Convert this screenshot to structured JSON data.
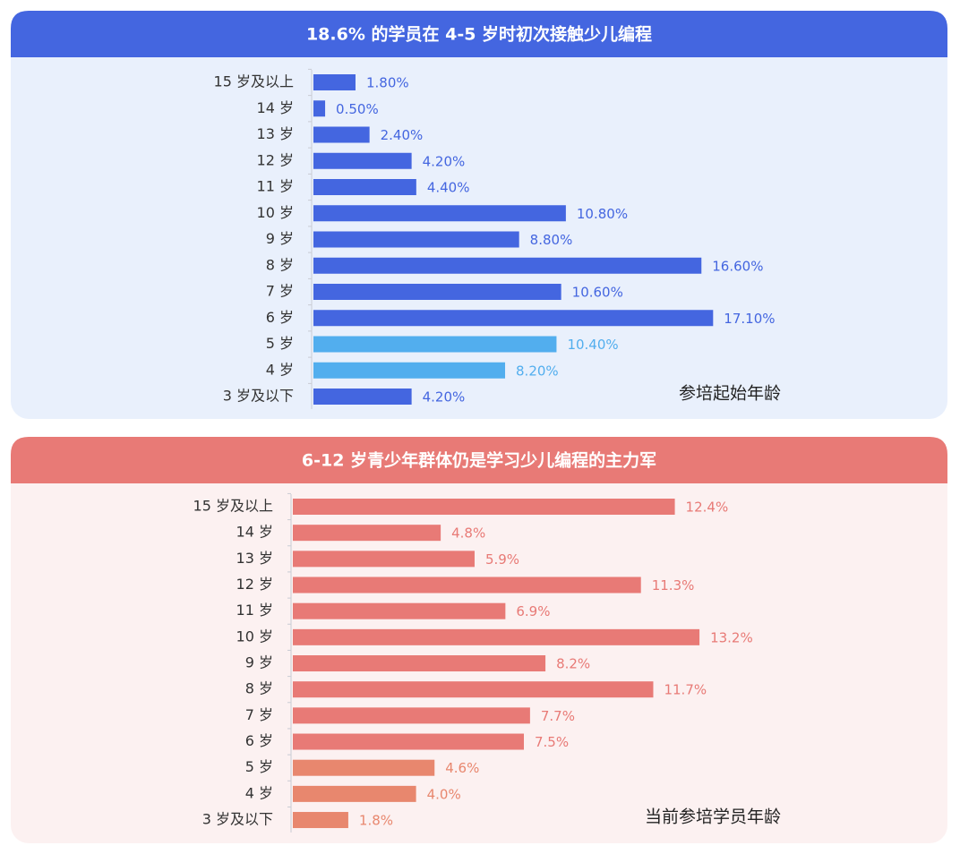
{
  "chart_data": [
    {
      "type": "bar",
      "orientation": "horizontal",
      "title": "18.6% 的学员在 4-5 岁时初次接触少儿编程",
      "annotation": "参培起始年龄",
      "categories": [
        "15 岁及以上",
        "14 岁",
        "13 岁",
        "12 岁",
        "11 岁",
        "10 岁",
        "9 岁",
        "8 岁",
        "7 岁",
        "6 岁",
        "5 岁",
        "4 岁",
        "3 岁及以下"
      ],
      "values": [
        1.8,
        0.5,
        2.4,
        4.2,
        4.4,
        10.8,
        8.8,
        16.6,
        10.6,
        17.1,
        10.4,
        8.2,
        4.2
      ],
      "value_labels": [
        "1.80%",
        "0.50%",
        "2.40%",
        "4.20%",
        "4.40%",
        "10.80%",
        "8.80%",
        "16.60%",
        "10.60%",
        "17.10%",
        "10.40%",
        "8.20%",
        "4.20%"
      ],
      "colors": [
        "#4466e0",
        "#4466e0",
        "#4466e0",
        "#4466e0",
        "#4466e0",
        "#4466e0",
        "#4466e0",
        "#4466e0",
        "#4466e0",
        "#4466e0",
        "#52aeee",
        "#52aeee",
        "#4466e0"
      ],
      "header_color": "#4466e0",
      "panel_color": "#e9f0fc"
    },
    {
      "type": "bar",
      "orientation": "horizontal",
      "title": "6-12 岁青少年群体仍是学习少儿编程的主力军",
      "annotation": "当前参培学员年龄",
      "categories": [
        "15 岁及以上",
        "14 岁",
        "13 岁",
        "12 岁",
        "11 岁",
        "10 岁",
        "9 岁",
        "8 岁",
        "7 岁",
        "6 岁",
        "5 岁",
        "4 岁",
        "3 岁及以下"
      ],
      "values": [
        12.4,
        4.8,
        5.9,
        11.3,
        6.9,
        13.2,
        8.2,
        11.7,
        7.7,
        7.5,
        4.6,
        4.0,
        1.8
      ],
      "value_labels": [
        "12.4%",
        "4.8%",
        "5.9%",
        "11.3%",
        "6.9%",
        "13.2%",
        "8.2%",
        "11.7%",
        "7.7%",
        "7.5%",
        "4.6%",
        "4.0%",
        "1.8%"
      ],
      "colors": [
        "#e87a76",
        "#e87a76",
        "#e87a76",
        "#e87a76",
        "#e87a76",
        "#e87a76",
        "#e87a76",
        "#e87a76",
        "#e87a76",
        "#e87a76",
        "#e8876e",
        "#e8876e",
        "#e8876e"
      ],
      "header_color": "#e87a76",
      "panel_color": "#fcf1f1"
    }
  ]
}
